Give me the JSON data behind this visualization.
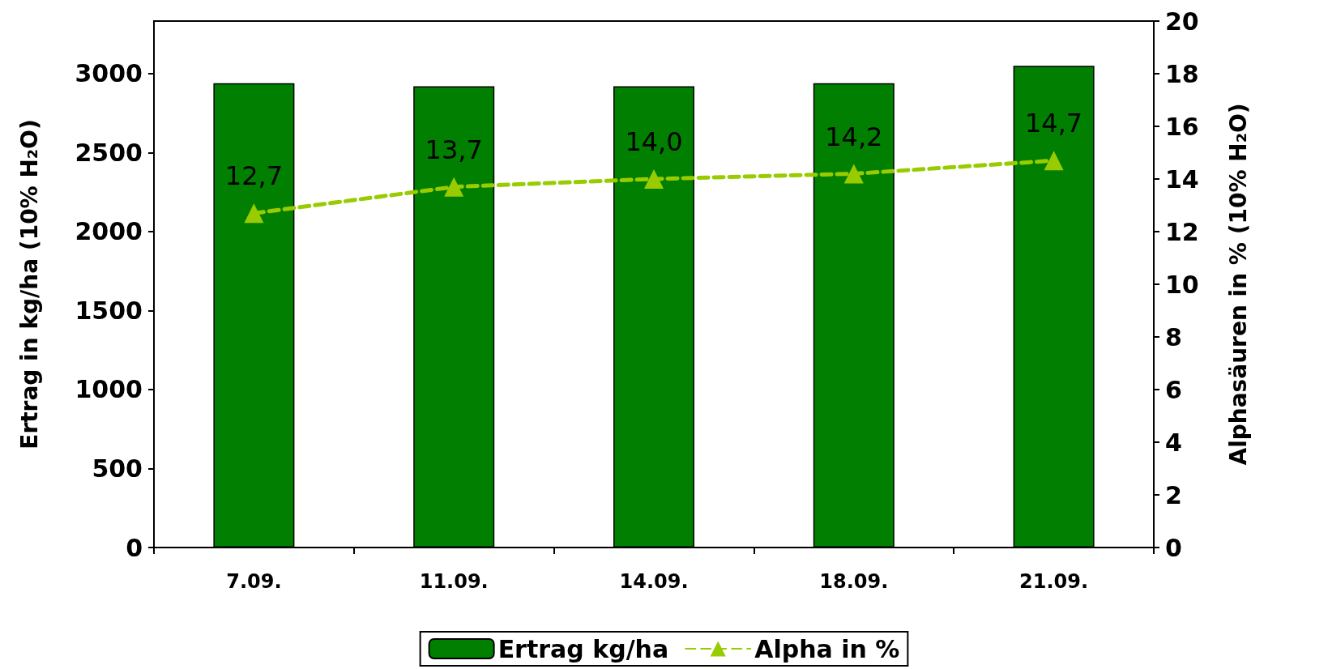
{
  "chart_data": {
    "type": "bar",
    "categories": [
      "7.09.",
      "11.09.",
      "14.09.",
      "18.09.",
      "21.09."
    ],
    "ylabel": "Ertrag in kg/ha (10% H₂O)",
    "y2label": "Alphasäuren in % (10% H₂O)",
    "series": [
      {
        "name": "Ertrag kg/ha",
        "color": "#007f00",
        "values": [
          2940,
          2920,
          2920,
          2940,
          3050
        ]
      },
      {
        "name": "Alpha in %",
        "type": "line",
        "axis": "y2",
        "color": "#99cc00",
        "values": [
          12.7,
          13.7,
          14.0,
          14.2,
          14.7
        ],
        "value_labels": [
          "12,7",
          "13,7",
          "14,0",
          "14,2",
          "14,7"
        ],
        "marker": "triangle",
        "line_style": "dashed"
      }
    ],
    "ylim": [
      0,
      3333.3
    ],
    "yticks": [
      0,
      500,
      1000,
      1500,
      2000,
      2500,
      3000
    ],
    "y2lim": [
      0,
      20
    ],
    "y2ticks": [
      0,
      2,
      4,
      6,
      8,
      10,
      12,
      14,
      16,
      18,
      20
    ],
    "grid": false,
    "legend": "bottom"
  }
}
